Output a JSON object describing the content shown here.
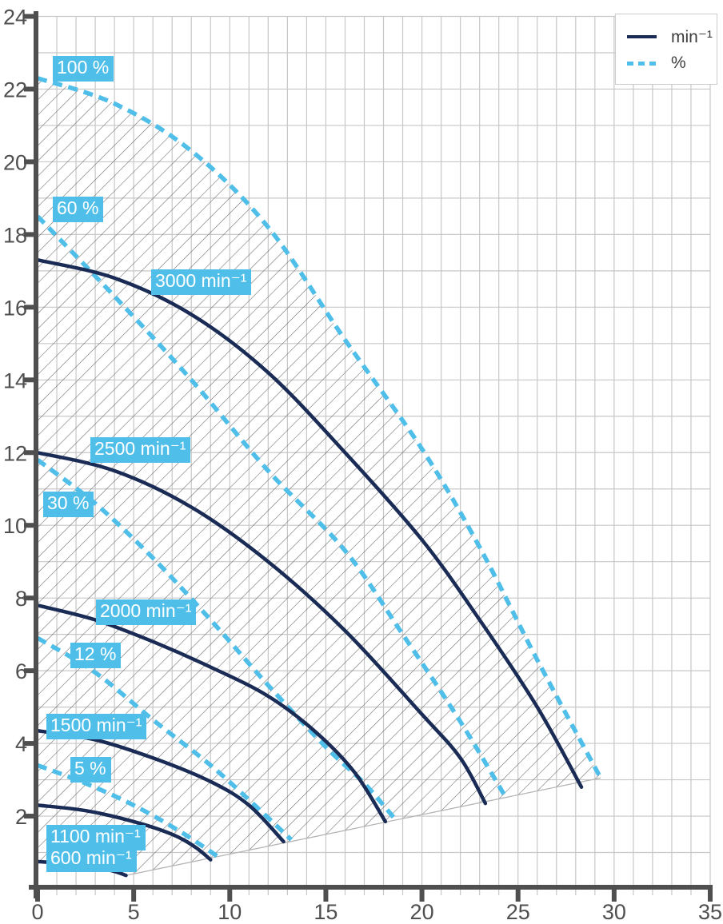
{
  "chart_data": {
    "type": "line",
    "title": "",
    "xlabel": "",
    "ylabel": "",
    "xlim": [
      0,
      35
    ],
    "ylim": [
      0,
      24
    ],
    "x_major_ticks": [
      0,
      5,
      10,
      15,
      20,
      25,
      30,
      35
    ],
    "y_major_ticks": [
      2,
      4,
      6,
      8,
      10,
      12,
      14,
      16,
      18,
      20,
      22,
      24
    ],
    "grid_step": 1,
    "legend": {
      "items": [
        {
          "label": "min⁻¹",
          "style": "solid"
        },
        {
          "label": "%",
          "style": "dashed"
        }
      ]
    },
    "colors": {
      "solid_line": "#1a2c55",
      "dashed_line": "#4fbfe9",
      "badge_bg": "#4fbfe9",
      "badge_text": "#ffffff",
      "grid": "#c7c7c7",
      "axis": "#4f4f4f",
      "tick_text": "#4f4f4f",
      "hatch": "#666666",
      "envelope_edge": "#b5b5b5",
      "legend_text": "#3d3d3d",
      "legend_border": "#cccccc"
    },
    "series": [
      {
        "name": "3000 min⁻¹",
        "style": "solid",
        "role": "speed",
        "label": {
          "text": "3000 min⁻¹",
          "x": 5.9,
          "y": 17.05
        },
        "points": [
          [
            0,
            17.3
          ],
          [
            4,
            16.8
          ],
          [
            8,
            15.8
          ],
          [
            12,
            14.2
          ],
          [
            16,
            12.0
          ],
          [
            20,
            9.6
          ],
          [
            23,
            7.4
          ],
          [
            26,
            5.0
          ],
          [
            28.3,
            2.8
          ]
        ]
      },
      {
        "name": "2500 min⁻¹",
        "style": "solid",
        "role": "speed",
        "label": {
          "text": "2500 min⁻¹",
          "x": 2.75,
          "y": 12.42
        },
        "points": [
          [
            0,
            12.0
          ],
          [
            4,
            11.5
          ],
          [
            8,
            10.5
          ],
          [
            12,
            9.0
          ],
          [
            16,
            7.1
          ],
          [
            20,
            4.8
          ],
          [
            22,
            3.6
          ],
          [
            23.3,
            2.35
          ]
        ]
      },
      {
        "name": "2000 min⁻¹",
        "style": "solid",
        "role": "speed",
        "label": {
          "text": "2000 min⁻¹",
          "x": 3.05,
          "y": 7.95
        },
        "points": [
          [
            0,
            7.8
          ],
          [
            3,
            7.4
          ],
          [
            6,
            6.8
          ],
          [
            9,
            6.1
          ],
          [
            12,
            5.3
          ],
          [
            14.5,
            4.3
          ],
          [
            16.5,
            3.2
          ],
          [
            18.1,
            1.85
          ]
        ]
      },
      {
        "name": "1500 min⁻¹",
        "style": "solid",
        "role": "speed",
        "label": {
          "text": "1500 min⁻¹",
          "x": 0.45,
          "y": 4.82
        },
        "points": [
          [
            0,
            4.35
          ],
          [
            3,
            4.1
          ],
          [
            6,
            3.6
          ],
          [
            9,
            2.95
          ],
          [
            11,
            2.3
          ],
          [
            12.8,
            1.3
          ]
        ]
      },
      {
        "name": "1100 min⁻¹",
        "style": "solid",
        "role": "speed",
        "label": {
          "text": "1100 min⁻¹",
          "x": 0.45,
          "y": 1.76
        },
        "points": [
          [
            0,
            2.3
          ],
          [
            2.5,
            2.15
          ],
          [
            5,
            1.85
          ],
          [
            7,
            1.5
          ],
          [
            8.2,
            1.15
          ],
          [
            9,
            0.8
          ]
        ]
      },
      {
        "name": "600 min⁻¹",
        "style": "solid",
        "role": "envelope_bottom_left",
        "label": {
          "text": "600 min⁻¹",
          "x": 0.45,
          "y": 1.16
        },
        "points": [
          [
            0,
            0.75
          ],
          [
            1.5,
            0.7
          ],
          [
            3,
            0.6
          ],
          [
            4,
            0.48
          ],
          [
            4.6,
            0.37
          ]
        ]
      },
      {
        "name": "100 %",
        "style": "dashed",
        "role": "envelope_top",
        "label": {
          "text": "100 %",
          "x": 0.8,
          "y": 22.92
        },
        "points": [
          [
            0,
            22.3
          ],
          [
            4,
            21.6
          ],
          [
            8,
            20.3
          ],
          [
            12,
            18.2
          ],
          [
            16,
            15.1
          ],
          [
            20,
            12.1
          ],
          [
            23,
            9.4
          ],
          [
            26,
            6.3
          ],
          [
            29.3,
            3.05
          ]
        ]
      },
      {
        "name": "60 %",
        "style": "dashed",
        "role": "percent",
        "label": {
          "text": "60 %",
          "x": 0.8,
          "y": 19.05
        },
        "points": [
          [
            0,
            18.5
          ],
          [
            4,
            16.3
          ],
          [
            8,
            14.0
          ],
          [
            12,
            11.5
          ],
          [
            16,
            9.3
          ],
          [
            19,
            7.0
          ],
          [
            22,
            4.6
          ],
          [
            24.4,
            2.48
          ]
        ]
      },
      {
        "name": "30 %",
        "style": "dashed",
        "role": "percent",
        "label": {
          "text": "30 %",
          "x": 0.3,
          "y": 10.93
        },
        "points": [
          [
            0,
            11.8
          ],
          [
            3,
            10.6
          ],
          [
            6,
            9.1
          ],
          [
            9,
            7.4
          ],
          [
            12,
            5.6
          ],
          [
            15,
            3.9
          ],
          [
            17,
            2.9
          ],
          [
            18.6,
            1.92
          ]
        ]
      },
      {
        "name": "12 %",
        "style": "dashed",
        "role": "percent",
        "label": {
          "text": "12 %",
          "x": 1.7,
          "y": 6.78
        },
        "points": [
          [
            0,
            6.9
          ],
          [
            3,
            5.95
          ],
          [
            6,
            4.65
          ],
          [
            9,
            3.4
          ],
          [
            11.5,
            2.2
          ],
          [
            13.2,
            1.35
          ]
        ]
      },
      {
        "name": "5 %",
        "style": "dashed",
        "role": "percent",
        "label": {
          "text": "5 %",
          "x": 1.7,
          "y": 3.63
        },
        "points": [
          [
            0,
            3.4
          ],
          [
            2.5,
            2.9
          ],
          [
            5,
            2.3
          ],
          [
            7.5,
            1.55
          ],
          [
            9.4,
            0.88
          ]
        ]
      }
    ],
    "envelope_bottom_edge": [
      [
        4.6,
        0.37
      ],
      [
        29.3,
        3.05
      ]
    ]
  }
}
